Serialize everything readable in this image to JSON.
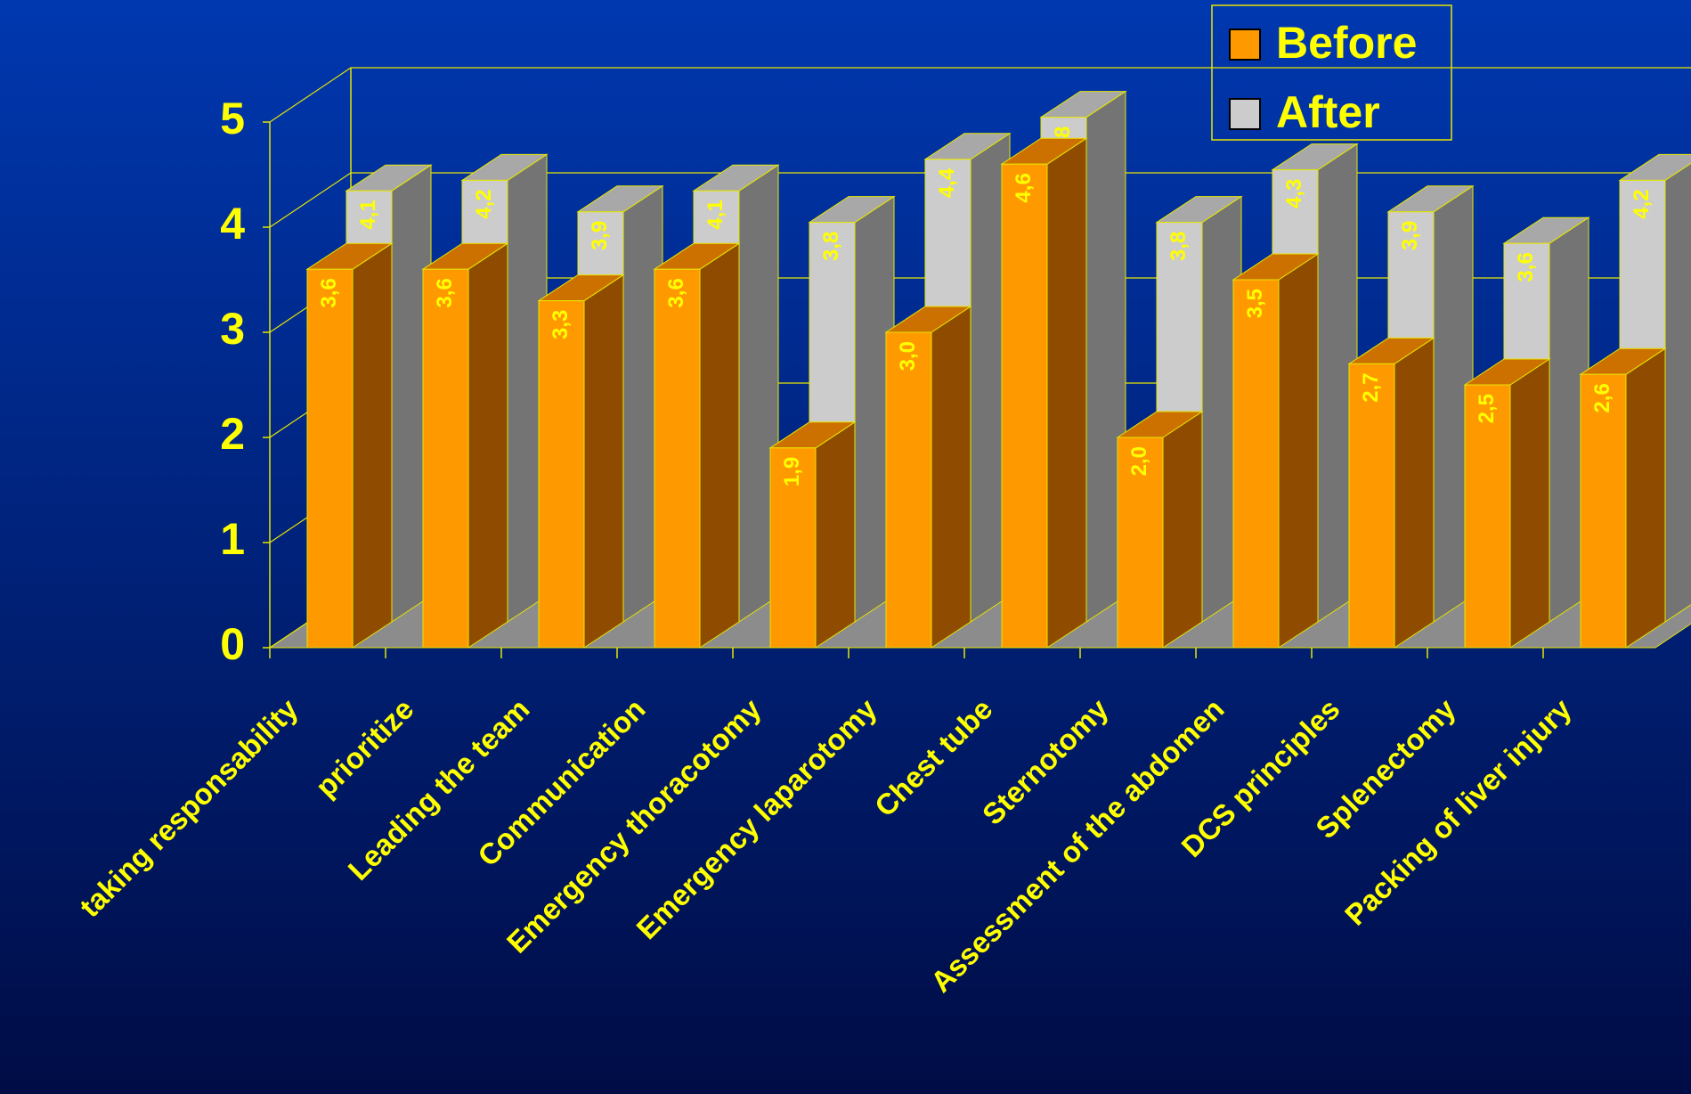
{
  "chart_data": {
    "type": "bar3d",
    "categories": [
      "taking responsability",
      "prioritize",
      "Leading the team",
      "Communication",
      "Emergency thoracotomy",
      "Emergency laparotomy",
      "Chest tube",
      "Sternotomy",
      "Assessment of the abdomen",
      "DCS principles",
      "Splenectomy",
      "Packing of liver injury"
    ],
    "series": [
      {
        "name": "Before",
        "color": "#ff9900",
        "values": [
          3.6,
          3.6,
          3.3,
          3.6,
          1.9,
          3.0,
          4.6,
          2.0,
          3.5,
          2.7,
          2.5,
          2.6
        ],
        "value_labels": [
          "3,6",
          "3,6",
          "3,3",
          "3,6",
          "1,9",
          "3,0",
          "4,6",
          "2,0",
          "3,5",
          "2,7",
          "2,5",
          "2,6"
        ]
      },
      {
        "name": "After",
        "color": "#cccccc",
        "values": [
          4.1,
          4.2,
          3.9,
          4.1,
          3.8,
          4.4,
          4.8,
          3.8,
          4.3,
          3.9,
          3.6,
          4.2
        ],
        "value_labels": [
          "4,1",
          "4,2",
          "3,9",
          "4,1",
          "3,8",
          "4,4",
          "4,8",
          "3,8",
          "4,3",
          "3,9",
          "3,6",
          "4,2"
        ]
      }
    ],
    "ylim": [
      0,
      5
    ],
    "yticks": [
      0,
      1,
      2,
      3,
      4,
      5
    ],
    "grid": true,
    "legend": "top-right"
  }
}
